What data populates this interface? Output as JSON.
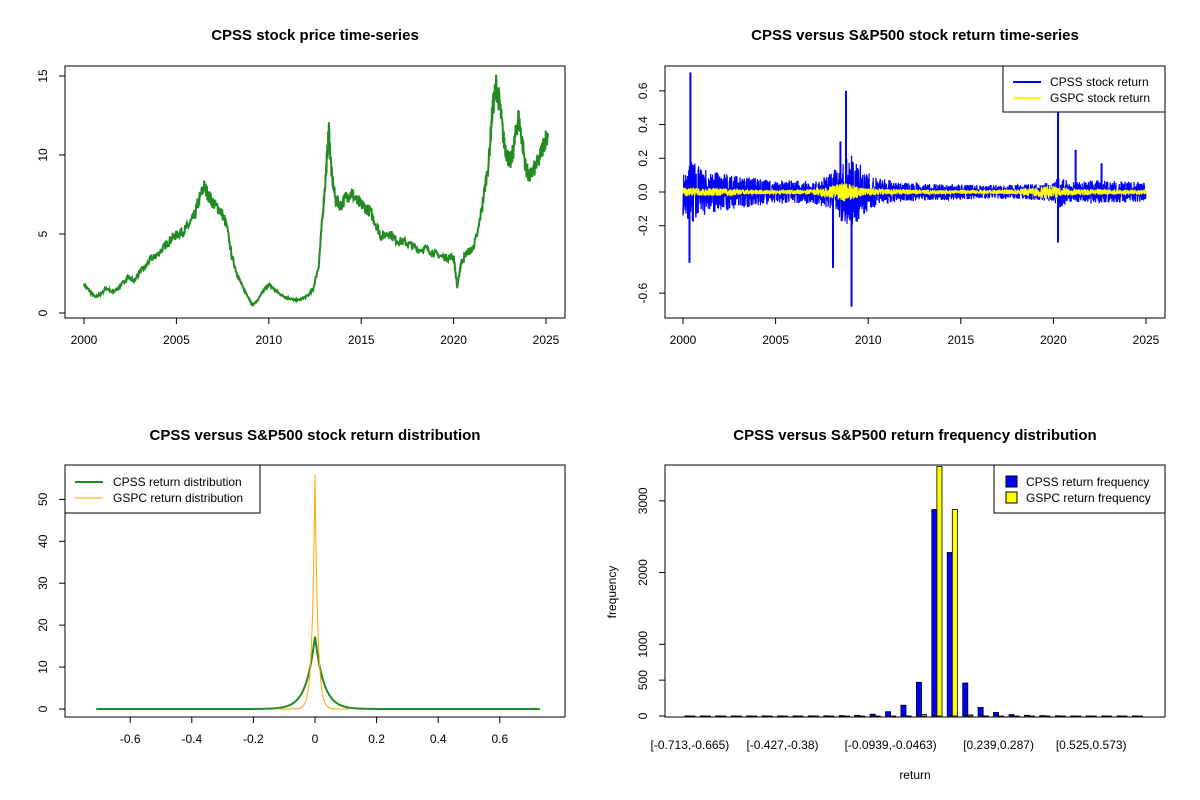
{
  "chart_data": [
    {
      "id": "price",
      "type": "line",
      "title": "CPSS stock price time-series",
      "xlabel": "",
      "ylabel": "",
      "xlim": [
        2000,
        2025
      ],
      "ylim": [
        0,
        15
      ],
      "xticks": [
        2000,
        2005,
        2010,
        2015,
        2020,
        2025
      ],
      "yticks": [
        0,
        5,
        10,
        15
      ],
      "color": "#228B22",
      "series": [
        {
          "name": "CPSS stock price",
          "x": [
            2000.0,
            2000.3,
            2000.6,
            2000.9,
            2001.2,
            2001.5,
            2001.8,
            2002.1,
            2002.4,
            2002.7,
            2003.0,
            2003.3,
            2003.6,
            2003.9,
            2004.2,
            2004.5,
            2004.8,
            2005.1,
            2005.4,
            2005.7,
            2006.0,
            2006.3,
            2006.5,
            2006.8,
            2007.1,
            2007.4,
            2007.7,
            2008.0,
            2008.3,
            2008.6,
            2008.9,
            2009.1,
            2009.4,
            2009.7,
            2010.0,
            2010.3,
            2010.6,
            2010.9,
            2011.2,
            2011.5,
            2011.8,
            2012.1,
            2012.4,
            2012.7,
            2012.9,
            2013.1,
            2013.25,
            2013.4,
            2013.6,
            2013.9,
            2014.2,
            2014.5,
            2014.8,
            2015.1,
            2015.5,
            2015.8,
            2016.1,
            2016.5,
            2016.9,
            2017.3,
            2017.7,
            2018.1,
            2018.5,
            2018.9,
            2019.3,
            2019.7,
            2020.0,
            2020.2,
            2020.4,
            2020.7,
            2021.0,
            2021.3,
            2021.6,
            2021.9,
            2022.1,
            2022.3,
            2022.5,
            2022.7,
            2022.9,
            2023.1,
            2023.3,
            2023.5,
            2023.7,
            2023.9,
            2024.1,
            2024.3,
            2024.6,
            2024.9,
            2025.1
          ],
          "y": [
            1.8,
            1.4,
            1.0,
            1.2,
            1.6,
            1.3,
            1.5,
            1.9,
            2.3,
            2.0,
            2.6,
            2.9,
            3.4,
            3.6,
            4.0,
            4.4,
            4.8,
            5.0,
            5.2,
            5.6,
            6.2,
            7.4,
            8.0,
            7.3,
            6.8,
            6.5,
            5.6,
            3.6,
            2.4,
            1.6,
            1.0,
            0.5,
            0.8,
            1.4,
            1.8,
            1.5,
            1.2,
            1.0,
            0.9,
            0.8,
            0.9,
            1.1,
            1.5,
            3.0,
            6.0,
            9.0,
            11.6,
            8.8,
            7.2,
            6.8,
            7.4,
            7.6,
            7.0,
            6.8,
            6.4,
            5.6,
            4.8,
            5.1,
            4.6,
            4.5,
            4.3,
            4.0,
            4.1,
            3.8,
            3.6,
            3.5,
            3.6,
            1.6,
            3.2,
            3.8,
            4.0,
            5.0,
            7.2,
            9.6,
            12.8,
            14.4,
            13.2,
            11.0,
            10.0,
            9.5,
            10.8,
            12.4,
            11.0,
            9.2,
            8.6,
            9.0,
            9.6,
            10.8,
            11.4
          ]
        }
      ]
    },
    {
      "id": "returns",
      "type": "line",
      "title": "CPSS versus S&P500 stock return time-series",
      "xlabel": "",
      "ylabel": "",
      "xlim": [
        2000,
        2025
      ],
      "ylim": [
        -0.7,
        0.7
      ],
      "xticks": [
        2000,
        2005,
        2010,
        2015,
        2020,
        2025
      ],
      "yticks": [
        -0.6,
        -0.2,
        0.0,
        0.2,
        0.4,
        0.6
      ],
      "ytick_labels": [
        "-0.6",
        "-0.2",
        "0.0",
        "0.2",
        "0.4",
        "0.6"
      ],
      "legend": {
        "position": "top-right",
        "entries": [
          {
            "label": "CPSS stock return",
            "color": "#0000FF"
          },
          {
            "label": "GSPC stock return",
            "color": "#FFFF00"
          }
        ]
      },
      "volatility": {
        "x": [
          2000,
          2000.5,
          2001,
          2002,
          2003,
          2004,
          2005,
          2006,
          2007,
          2008,
          2008.7,
          2009.2,
          2009.8,
          2010.5,
          2012,
          2014,
          2016,
          2018,
          2020,
          2020.3,
          2021,
          2022,
          2023,
          2025
        ],
        "cpss": [
          0.1,
          0.13,
          0.1,
          0.08,
          0.07,
          0.06,
          0.05,
          0.05,
          0.05,
          0.08,
          0.14,
          0.16,
          0.09,
          0.06,
          0.04,
          0.035,
          0.03,
          0.03,
          0.04,
          0.07,
          0.04,
          0.05,
          0.05,
          0.04
        ],
        "gspc": [
          0.018,
          0.018,
          0.016,
          0.016,
          0.012,
          0.01,
          0.008,
          0.008,
          0.012,
          0.025,
          0.04,
          0.03,
          0.015,
          0.013,
          0.011,
          0.008,
          0.008,
          0.01,
          0.03,
          0.02,
          0.012,
          0.014,
          0.01,
          0.01
        ]
      },
      "spikes": [
        {
          "x": 2000.4,
          "y": 0.71
        },
        {
          "x": 2000.35,
          "y": -0.42
        },
        {
          "x": 2008.1,
          "y": -0.45
        },
        {
          "x": 2008.8,
          "y": 0.6
        },
        {
          "x": 2009.1,
          "y": -0.68
        },
        {
          "x": 2008.5,
          "y": 0.3
        },
        {
          "x": 2020.25,
          "y": 0.5
        },
        {
          "x": 2020.25,
          "y": -0.3
        },
        {
          "x": 2021.2,
          "y": 0.25
        },
        {
          "x": 2022.6,
          "y": 0.17
        }
      ],
      "series": [
        {
          "name": "CPSS stock return",
          "color": "#0000FF"
        },
        {
          "name": "GSPC stock return",
          "color": "#FFFF00"
        }
      ]
    },
    {
      "id": "density",
      "type": "line",
      "title": "CPSS versus S&P500 stock return distribution",
      "xlabel": "",
      "ylabel": "",
      "xlim": [
        -0.75,
        0.75
      ],
      "ylim": [
        0,
        57
      ],
      "xticks": [
        -0.6,
        -0.4,
        -0.2,
        0.0,
        0.2,
        0.4,
        0.6
      ],
      "yticks": [
        0,
        10,
        20,
        30,
        40,
        50
      ],
      "legend": {
        "position": "top-left",
        "entries": [
          {
            "label": "CPSS return distribution",
            "color": "#228B22"
          },
          {
            "label": "GSPC return distribution",
            "color": "#FFA500"
          }
        ]
      },
      "series": [
        {
          "name": "CPSS return distribution",
          "color": "#228B22",
          "peak": 17.5,
          "xmin": -0.71,
          "xmax": 0.73,
          "shape": "laplace",
          "scale": 0.028
        },
        {
          "name": "GSPC return distribution",
          "color": "#FFA500",
          "peak": 56,
          "xmin": -0.12,
          "xmax": 0.11,
          "shape": "laplace",
          "scale": 0.0089
        }
      ]
    },
    {
      "id": "freq",
      "type": "bar",
      "title": "CPSS versus S&P500 return frequency distribution",
      "xlabel": "return",
      "ylabel": "frequency",
      "ylim": [
        0,
        3500
      ],
      "yticks": [
        0,
        500,
        1000,
        2000,
        3000
      ],
      "xtick_labels": [
        "[-0.713,-0.665)",
        "[-0.427,-0.38)",
        "[-0.0939,-0.0463)",
        "[0.239,0.287)",
        "[0.525,0.573)"
      ],
      "xtick_indices": [
        0,
        6,
        13,
        20,
        26
      ],
      "legend": {
        "position": "top-right",
        "entries": [
          {
            "label": "CPSS return frequency",
            "color": "#0000FF"
          },
          {
            "label": "GSPC return frequency",
            "color": "#FFFF00"
          }
        ]
      },
      "categories_count": 30,
      "series": [
        {
          "name": "CPSS return frequency",
          "color": "#0000FF",
          "values": [
            2,
            1,
            1,
            1,
            1,
            1,
            1,
            2,
            2,
            3,
            5,
            10,
            25,
            60,
            150,
            470,
            2880,
            2280,
            460,
            120,
            50,
            20,
            10,
            5,
            3,
            2,
            1,
            1,
            1,
            1
          ]
        },
        {
          "name": "GSPC return frequency",
          "color": "#FFFF00",
          "values": [
            0,
            0,
            0,
            0,
            0,
            0,
            0,
            0,
            0,
            0,
            0,
            0,
            0,
            0,
            2,
            20,
            3480,
            2880,
            15,
            1,
            0,
            0,
            0,
            0,
            0,
            0,
            0,
            0,
            0,
            0
          ]
        }
      ]
    }
  ]
}
